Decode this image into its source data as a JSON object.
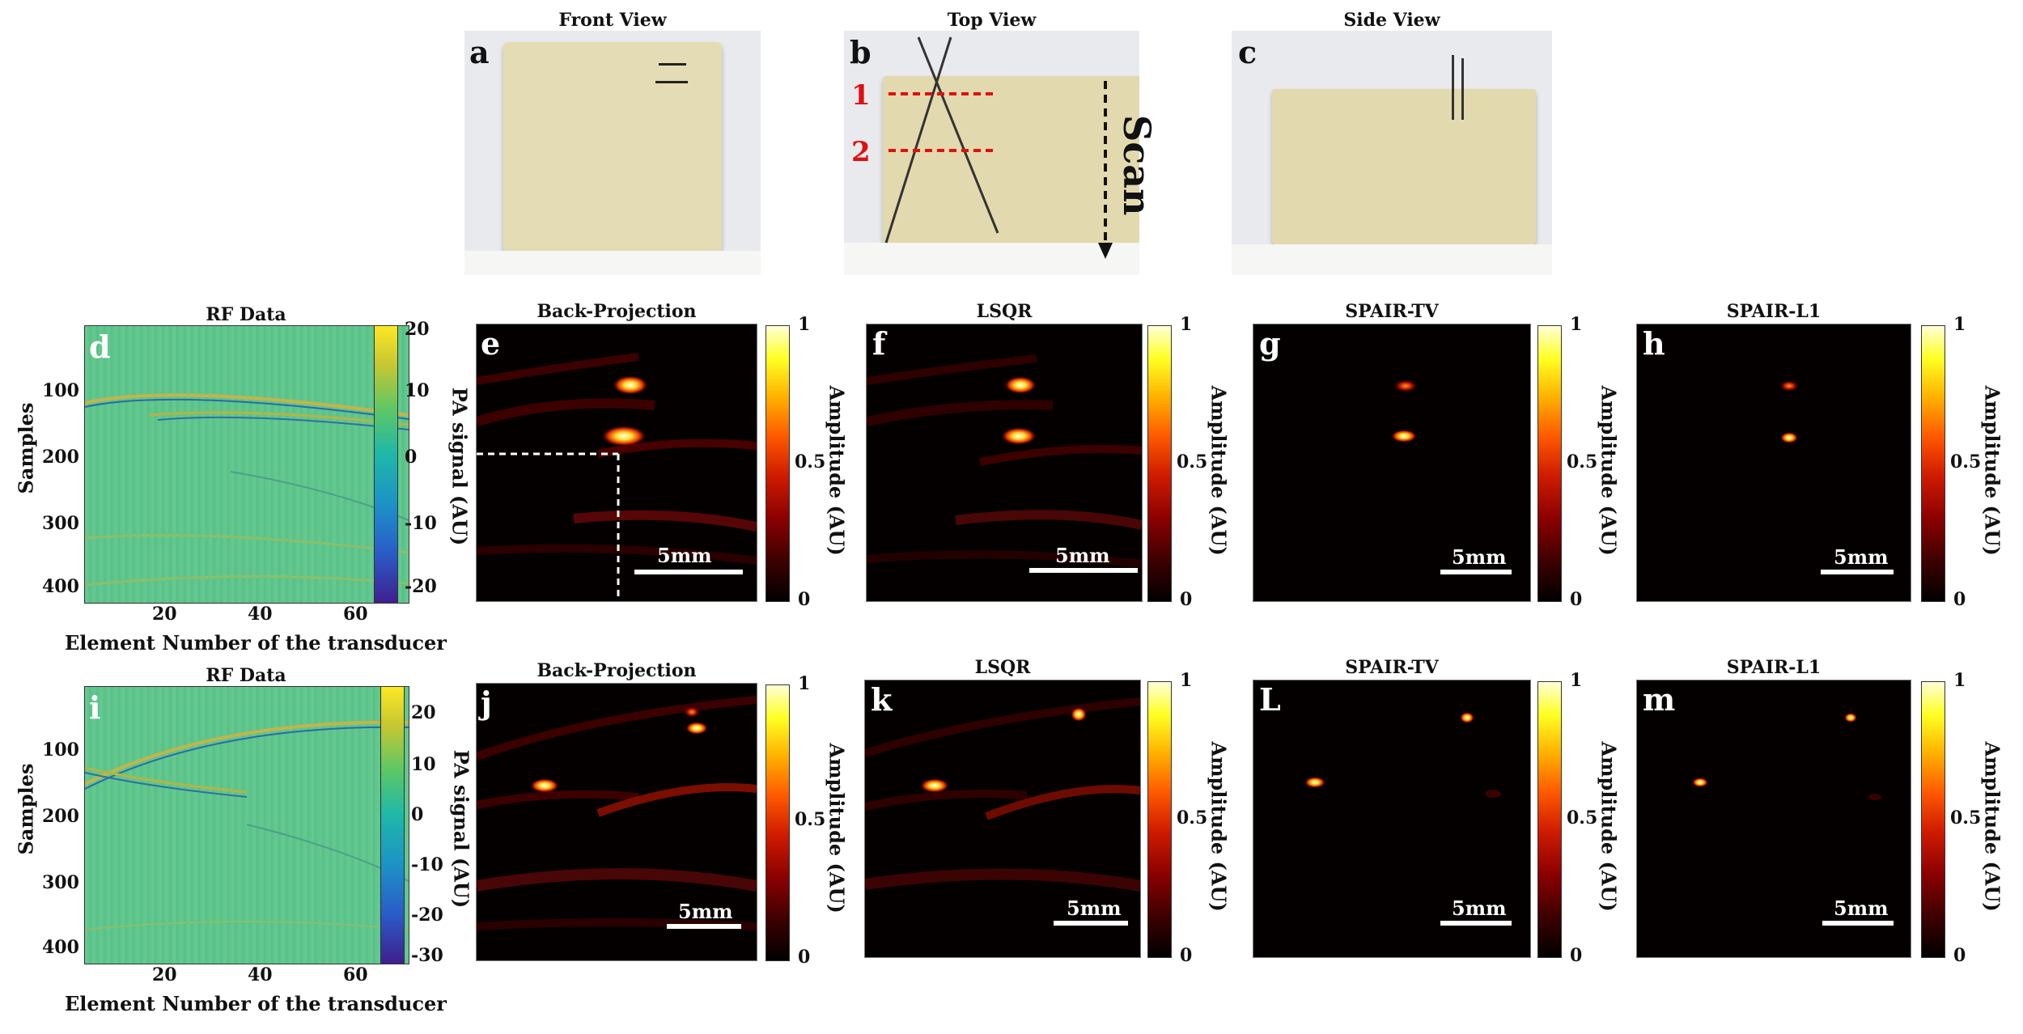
{
  "photos": {
    "a": {
      "letter": "a",
      "title": "Front View"
    },
    "b": {
      "letter": "b",
      "title": "Top View",
      "line1": "1",
      "line2": "2",
      "scan": "Scan"
    },
    "c": {
      "letter": "c",
      "title": "Side View"
    }
  },
  "rf_panels": {
    "d": {
      "letter": "d",
      "title": "RF Data",
      "ylabel": "Samples",
      "xlabel": "Element Number of the transducer",
      "yticks": [
        "100",
        "200",
        "300",
        "400"
      ],
      "xticks": [
        "20",
        "40",
        "60"
      ],
      "cbar_label": "PA signal (AU)",
      "cbar_ticks": [
        "20",
        "10",
        "0",
        "-10",
        "-20"
      ]
    },
    "i": {
      "letter": "i",
      "title": "RF Data",
      "ylabel": "Samples",
      "xlabel": "Element Number of the transducer",
      "yticks": [
        "100",
        "200",
        "300",
        "400"
      ],
      "xticks": [
        "20",
        "40",
        "60"
      ],
      "cbar_label": "PA signal (AU)",
      "cbar_ticks": [
        "20",
        "10",
        "0",
        "-10",
        "-20",
        "-30"
      ]
    }
  },
  "recon_panels": {
    "e": {
      "letter": "e",
      "title": "Back-Projection"
    },
    "f": {
      "letter": "f",
      "title": "LSQR"
    },
    "g": {
      "letter": "g",
      "title": "SPAIR-TV"
    },
    "h": {
      "letter": "h",
      "title": "SPAIR-L1"
    },
    "j": {
      "letter": "j",
      "title": "Back-Projection"
    },
    "k": {
      "letter": "k",
      "title": "LSQR"
    },
    "L": {
      "letter": "L",
      "title": "SPAIR-TV"
    },
    "m": {
      "letter": "m",
      "title": "SPAIR-L1"
    }
  },
  "amplitude_cbar": {
    "label": "Amplitude (AU)",
    "ticks": [
      "1",
      "0.5",
      "0"
    ]
  },
  "scale_bar": "5mm",
  "colors": {
    "amp_bright": "#ffff66",
    "pa_top": "#fde725",
    "pa_bottom": "#3f1f8f",
    "marker_red": "#e01010"
  }
}
